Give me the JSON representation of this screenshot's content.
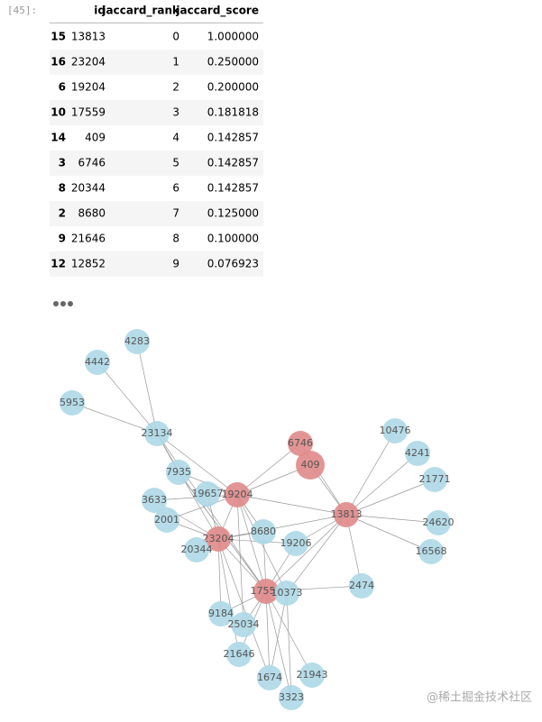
{
  "prompt": "[45]:",
  "table": {
    "columns": [
      "id",
      "jaccard_rank",
      "jaccard_score"
    ],
    "rows": [
      [
        15,
        13813,
        0,
        "1.000000"
      ],
      [
        16,
        23204,
        1,
        "0.250000"
      ],
      [
        6,
        19204,
        2,
        "0.200000"
      ],
      [
        10,
        17559,
        3,
        "0.181818"
      ],
      [
        14,
        409,
        4,
        "0.142857"
      ],
      [
        3,
        6746,
        5,
        "0.142857"
      ],
      [
        8,
        20344,
        6,
        "0.142857"
      ],
      [
        2,
        8680,
        7,
        "0.125000"
      ],
      [
        9,
        21646,
        8,
        "0.100000"
      ],
      [
        12,
        12852,
        9,
        "0.076923"
      ]
    ]
  },
  "graph": {
    "nodes": [
      {
        "label": "4283",
        "color": "#add8e6"
      },
      {
        "label": "4442",
        "color": "#add8e6"
      },
      {
        "label": "5953",
        "color": "#add8e6"
      },
      {
        "label": "23134",
        "color": "#add8e6"
      },
      {
        "label": "6746",
        "color": "#e08a8a"
      },
      {
        "label": "409",
        "color": "#e08a8a"
      },
      {
        "label": "10476",
        "color": "#add8e6"
      },
      {
        "label": "4241",
        "color": "#add8e6"
      },
      {
        "label": "21771",
        "color": "#add8e6"
      },
      {
        "label": "7935",
        "color": "#add8e6"
      },
      {
        "label": "19657",
        "color": "#add8e6"
      },
      {
        "label": "19204",
        "color": "#e08a8a"
      },
      {
        "label": "3633",
        "color": "#add8e6"
      },
      {
        "label": "2001",
        "color": "#add8e6"
      },
      {
        "label": "13813",
        "color": "#e08a8a"
      },
      {
        "label": "24620",
        "color": "#add8e6"
      },
      {
        "label": "16568",
        "color": "#add8e6"
      },
      {
        "label": "23204",
        "color": "#e08a8a"
      },
      {
        "label": "8680",
        "color": "#add8e6"
      },
      {
        "label": "19206",
        "color": "#add8e6"
      },
      {
        "label": "20344",
        "color": "#add8e6"
      },
      {
        "label": "2474",
        "color": "#add8e6"
      },
      {
        "label": "17559",
        "color": "#e08a8a"
      },
      {
        "label": "10373",
        "color": "#add8e6"
      },
      {
        "label": "9184",
        "color": "#add8e6"
      },
      {
        "label": "25034",
        "color": "#add8e6"
      },
      {
        "label": "21646",
        "color": "#add8e6"
      },
      {
        "label": "1674",
        "color": "#add8e6"
      },
      {
        "label": "21943",
        "color": "#add8e6"
      },
      {
        "label": "3323",
        "color": "#add8e6"
      }
    ]
  },
  "watermark": "@稀土掘金技术社区"
}
